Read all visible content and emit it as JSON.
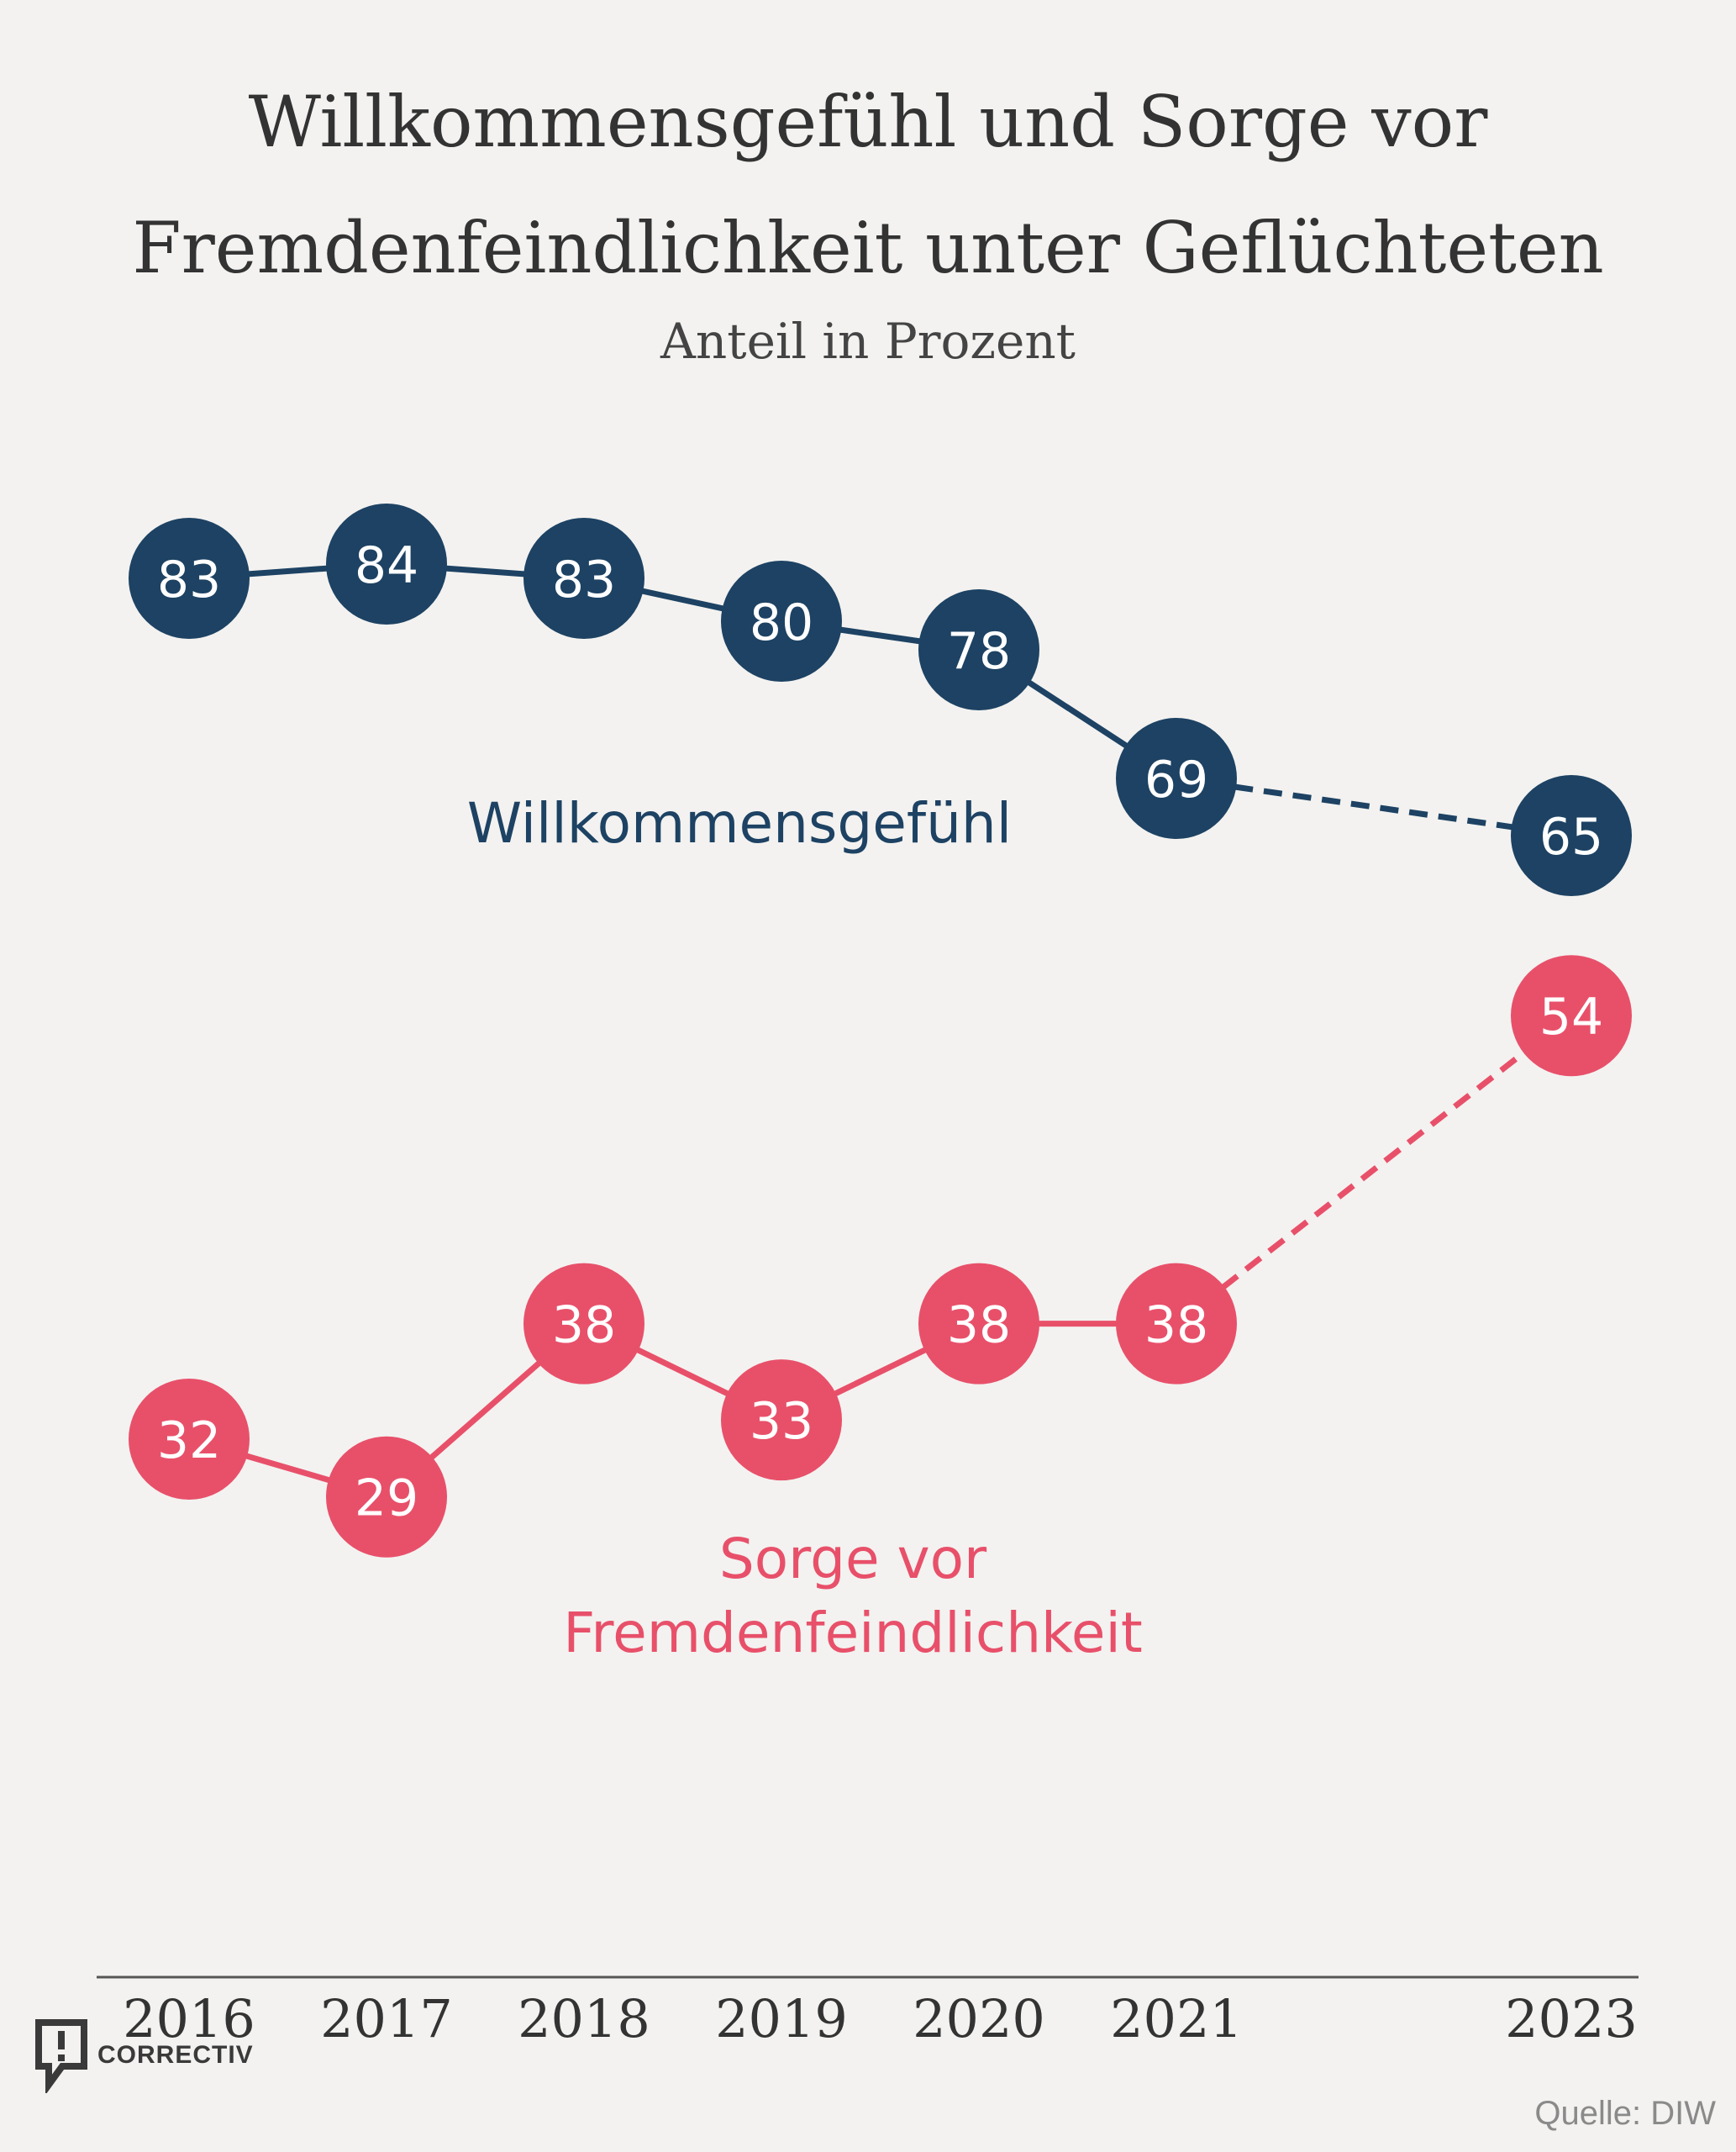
{
  "title_line1": "Willkommensgefühl und Sorge vor",
  "title_line2": "Fremdenfeindlichkeit unter Geflüchteten",
  "subtitle": "Anteil in Prozent",
  "source": "Quelle: DIW",
  "logo_text": "CORRECTIV",
  "logo_icon": "correctiv-speech-bubble-icon",
  "chart_data": {
    "type": "line",
    "x": [
      "2016",
      "2017",
      "2018",
      "2019",
      "2020",
      "2021",
      "2023"
    ],
    "series": [
      {
        "name": "Willkommensgefühl",
        "label_lines": [
          "Willkommensgefühl"
        ],
        "color": "#1d4263",
        "values": [
          83,
          84,
          83,
          80,
          78,
          69,
          65
        ],
        "dashed_last_segment": true
      },
      {
        "name": "Sorge vor Fremdenfeindlichkeit",
        "label_lines": [
          "Sorge vor",
          "Fremdenfeindlichkeit"
        ],
        "color": "#e8506a",
        "values": [
          32,
          29,
          38,
          33,
          38,
          38,
          54
        ],
        "dashed_last_segment": true
      }
    ],
    "data_labels": true,
    "grid": false,
    "legend": "inline-labels"
  }
}
